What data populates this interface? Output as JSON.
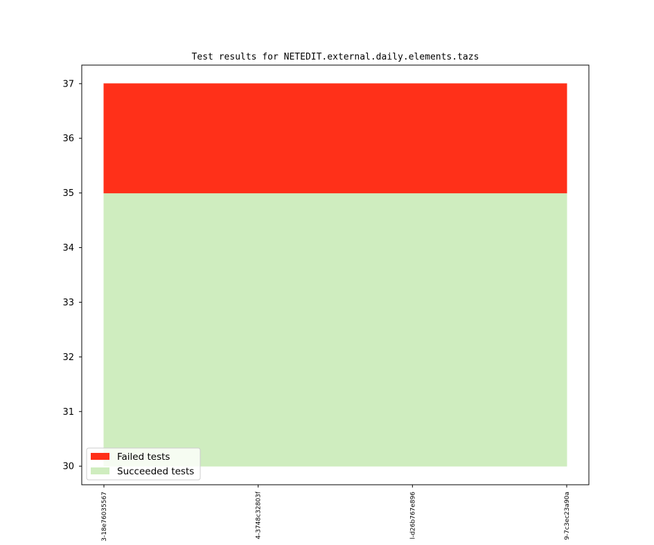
{
  "chart_data": {
    "type": "area",
    "title": "Test results for NETEDIT.external.daily.elements.tazs",
    "xlabel": "",
    "ylabel": "",
    "x_tick_labels": [
      "3-18e76035567",
      "4-3748c32803f",
      "l-d26b767e896",
      "9-7c3ec23a90a"
    ],
    "yticks": [
      30,
      31,
      32,
      33,
      34,
      35,
      36,
      37
    ],
    "ylim": [
      29.66,
      37.34
    ],
    "grid": false,
    "legend_position": "lower-left",
    "series": [
      {
        "name": "Failed tests",
        "color": "#ff3019",
        "y_bottom": [
          35,
          35,
          35,
          35
        ],
        "y_top": [
          37,
          37,
          37,
          37
        ]
      },
      {
        "name": "Succeeded tests",
        "color": "#cfedbf",
        "y_bottom": [
          30,
          30,
          30,
          30
        ],
        "y_top": [
          35,
          35,
          35,
          35
        ]
      }
    ]
  }
}
